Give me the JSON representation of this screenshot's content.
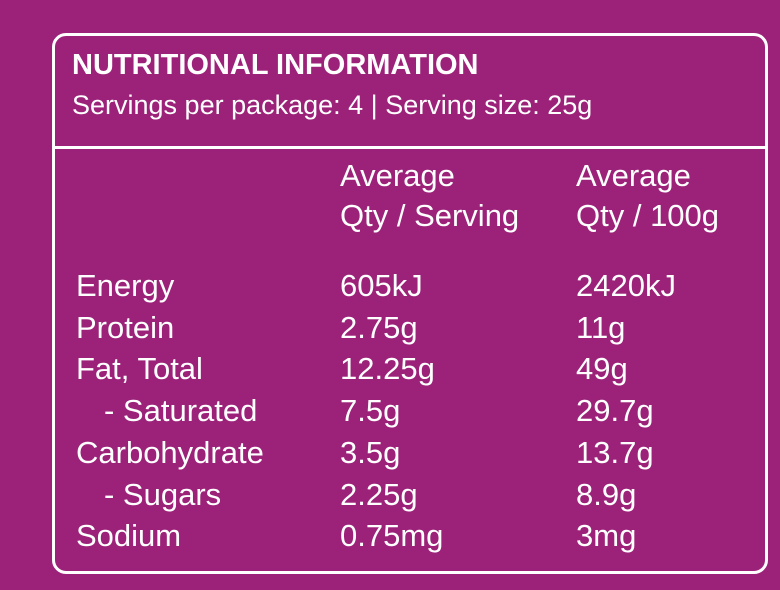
{
  "header": {
    "title": "NUTRITIONAL INFORMATION",
    "subtitle": "Servings per package: 4 | Serving size: 25g"
  },
  "table": {
    "columns": [
      [
        "Average",
        "Qty / Serving"
      ],
      [
        "Average",
        "Qty / 100g"
      ]
    ],
    "rows": [
      [
        "Energy",
        "605kJ",
        "2420kJ"
      ],
      [
        "Protein",
        "2.75g",
        "11g"
      ],
      [
        "Fat, Total",
        "12.25g",
        "49g"
      ],
      [
        "- Saturated",
        "7.5g",
        "29.7g"
      ],
      [
        "Carbohydrate",
        "3.5g",
        "13.7g"
      ],
      [
        "- Sugars",
        "2.25g",
        "8.9g"
      ],
      [
        "Sodium",
        "0.75mg",
        "3mg"
      ]
    ]
  }
}
